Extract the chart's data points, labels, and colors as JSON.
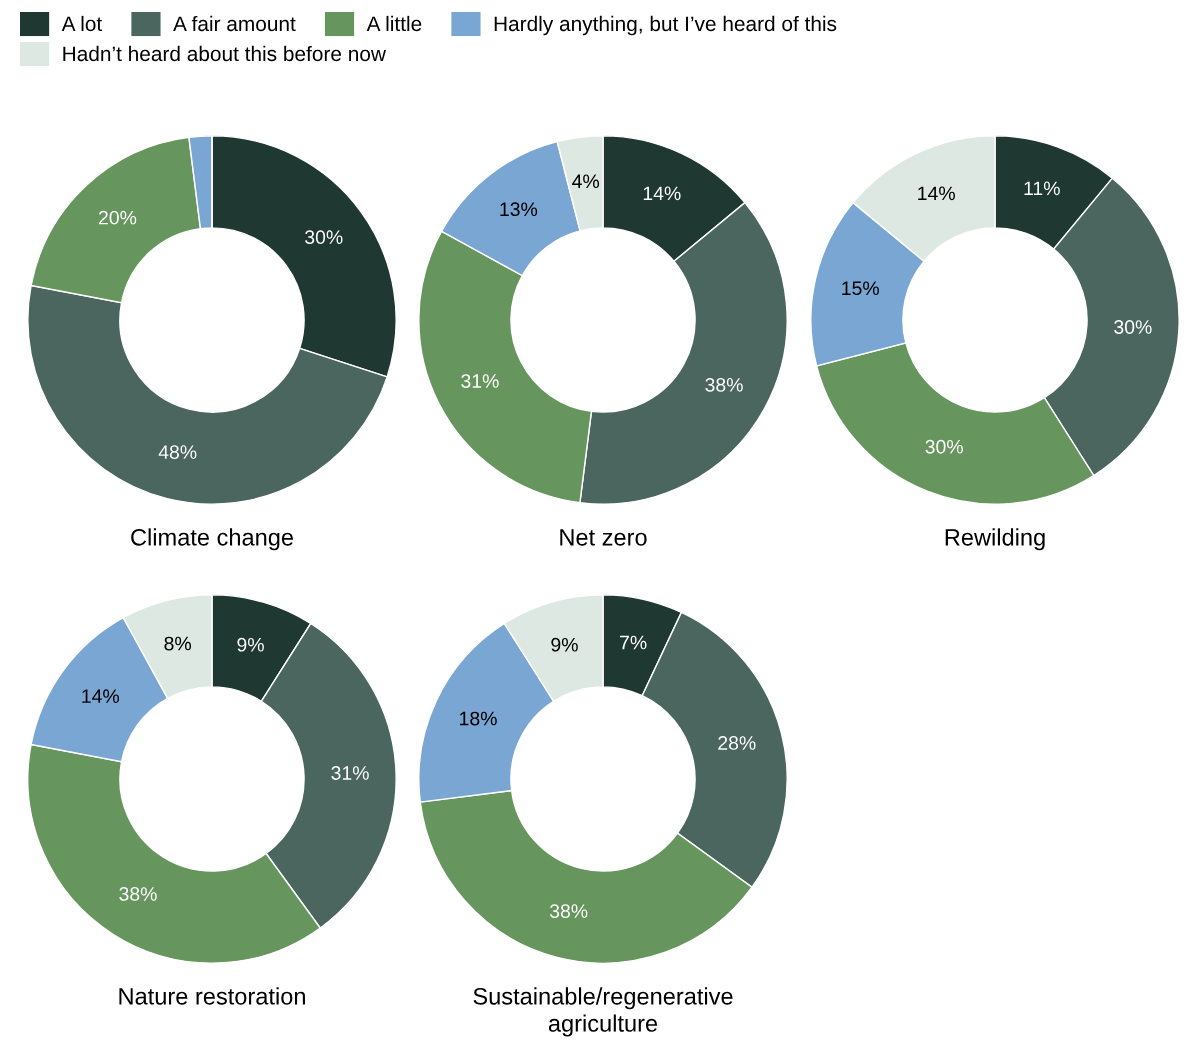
{
  "chart_data": {
    "type": "donut",
    "legend": "top left",
    "categories": [
      "A lot",
      "A fair amount",
      "A little",
      "Hardly anything, but I’ve heard of this",
      "Hadn’t heard about this before now"
    ],
    "colors": [
      "#1f3832",
      "#4a665e",
      "#66965e",
      "#7aa6d4",
      "#dde8e3"
    ],
    "series": [
      {
        "name": "Climate change",
        "values": [
          30,
          48,
          20,
          2,
          0
        ],
        "value_labels": [
          "30%",
          "48%",
          "20%",
          null,
          null
        ]
      },
      {
        "name": "Net zero",
        "values": [
          14,
          38,
          31,
          13,
          4
        ],
        "value_labels": [
          "14%",
          "38%",
          "31%",
          "13%",
          "4%"
        ]
      },
      {
        "name": "Rewilding",
        "values": [
          11,
          30,
          30,
          15,
          14
        ],
        "value_labels": [
          "11%",
          "30%",
          "30%",
          "15%",
          "14%"
        ]
      },
      {
        "name": "Nature restoration",
        "values": [
          9,
          31,
          38,
          14,
          8
        ],
        "value_labels": [
          "9%",
          "31%",
          "38%",
          "14%",
          "8%"
        ]
      },
      {
        "name": "Sustainable/regenerative agriculture",
        "values": [
          7,
          28,
          38,
          18,
          9
        ],
        "value_labels": [
          "7%",
          "28%",
          "38%",
          "18%",
          "9%"
        ]
      }
    ]
  }
}
